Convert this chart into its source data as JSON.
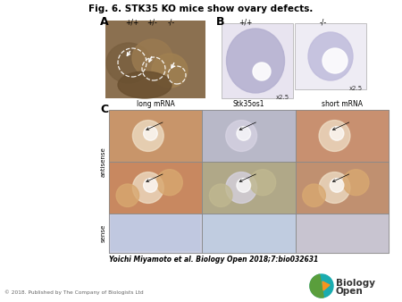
{
  "title": "Fig. 6. STK35 KO mice show ovary defects.",
  "title_fontsize": 7.5,
  "title_fontweight": "bold",
  "panel_A_label": "A",
  "panel_B_label": "B",
  "panel_C_label": "C",
  "panel_A_sublabels": [
    "+/+",
    "+/-",
    "-/-"
  ],
  "panel_B_sublabels": [
    "+/+",
    "-/-"
  ],
  "panel_B_mag": [
    "x2.5",
    "x2.5"
  ],
  "panel_C_col_labels": [
    "long mRNA",
    "Stk35os1",
    "short mRNA"
  ],
  "panel_C_row_labels": [
    "antisense",
    "sense"
  ],
  "citation": "Yoichi Miyamoto et al. Biology Open 2018;7:bio032631",
  "copyright": "© 2018. Published by The Company of Biologists Ltd",
  "bg_color": "#ffffff",
  "text_color": "#000000",
  "citation_color": "#000000",
  "copyright_color": "#666666",
  "logo_teal": "#1aacb0",
  "logo_orange": "#f7941d",
  "logo_green": "#5a9e3c",
  "panel_A_color": "#8b7050",
  "panel_B1_color": "#c8c4dc",
  "panel_B2_color": "#dcdae8",
  "cell_colors_row0": [
    "#c8956a",
    "#b8b8c8",
    "#c89070"
  ],
  "cell_colors_row1": [
    "#c88860",
    "#b0a888",
    "#c09070"
  ],
  "cell_colors_row2": [
    "#c8cce0",
    "#c0cce0",
    "#c8c4d0"
  ]
}
